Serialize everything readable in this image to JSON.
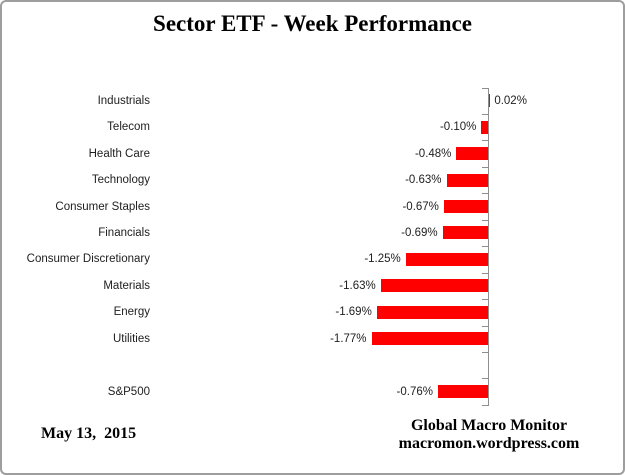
{
  "chart_data": {
    "type": "bar",
    "orientation": "horizontal",
    "title": "Sector ETF - Week Performance",
    "categories": [
      "Industrials",
      "Telecom",
      "Health Care",
      "Technology",
      "Consumer Staples",
      "Financials",
      "Consumer Discretionary",
      "Materials",
      "Energy",
      "Utilities",
      "",
      "S&P500"
    ],
    "values": [
      0.02,
      -0.1,
      -0.48,
      -0.63,
      -0.67,
      -0.69,
      -1.25,
      -1.63,
      -1.69,
      -1.77,
      null,
      -0.76
    ],
    "value_labels": [
      "0.02%",
      "-0.10%",
      "-0.48%",
      "-0.63%",
      "-0.67%",
      "-0.69%",
      "-1.25%",
      "-1.63%",
      "-1.69%",
      "-1.77%",
      "",
      "-0.76%"
    ],
    "xlabel": "",
    "ylabel": "",
    "xlim": [
      -2.1,
      0.35
    ],
    "grid": false,
    "legend": false,
    "bar_color": "#ff0000",
    "axis_color": "#8e8e8e"
  },
  "footer": {
    "date": "May 13,  2015",
    "attribution_line1": "Global Macro Monitor",
    "attribution_line2": "macromon.wordpress.com"
  }
}
